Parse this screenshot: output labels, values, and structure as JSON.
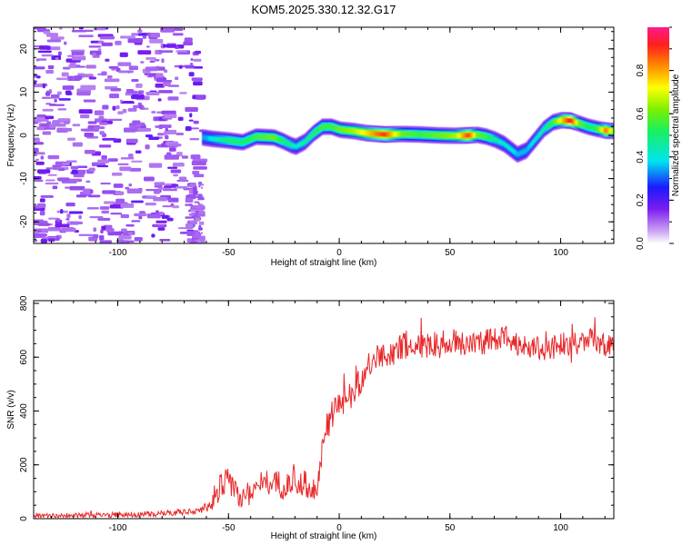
{
  "title": "KOM5.2025.330.12.32.G17",
  "chart_data": [
    {
      "type": "heatmap",
      "xlabel": "Height of straight line (km)",
      "ylabel": "Frequency (Hz)",
      "xlim": [
        -138,
        124
      ],
      "ylim": [
        -25,
        25
      ],
      "x_ticks": [
        -100,
        -50,
        0,
        50,
        100
      ],
      "y_ticks": [
        -20,
        -10,
        0,
        10,
        20
      ],
      "colorbar": {
        "label": "Normalized spectral amplitude",
        "range": [
          0,
          1
        ],
        "ticks": [
          0.0,
          0.2,
          0.4,
          0.6,
          0.8
        ]
      },
      "ridge_track": {
        "x": [
          -62,
          -58,
          -50,
          -44,
          -38,
          -30,
          -26,
          -22,
          -20,
          -16,
          -12,
          -8,
          -4,
          0,
          6,
          12,
          20,
          28,
          36,
          44,
          52,
          58,
          62,
          66,
          70,
          74,
          78,
          80,
          84,
          88,
          92,
          96,
          100,
          104,
          108,
          112,
          116,
          120,
          124
        ],
        "freq": [
          -0.5,
          -0.8,
          -1.2,
          -1.6,
          -0.3,
          -0.5,
          -1.3,
          -2.3,
          -2.6,
          -1.5,
          0.5,
          2.0,
          2.0,
          1.3,
          1.0,
          0.5,
          0.2,
          0.3,
          0.2,
          0.0,
          -0.1,
          0.0,
          0.1,
          -0.3,
          -1.0,
          -2.0,
          -3.6,
          -4.4,
          -3.5,
          -1.0,
          1.5,
          3.0,
          3.5,
          3.4,
          2.7,
          2.0,
          1.5,
          1.1,
          1.0
        ],
        "amplitude": [
          0.3,
          0.4,
          0.5,
          0.5,
          0.55,
          0.6,
          0.5,
          0.45,
          0.4,
          0.45,
          0.5,
          0.55,
          0.55,
          0.6,
          0.65,
          0.75,
          0.9,
          0.6,
          0.55,
          0.6,
          0.65,
          0.9,
          0.6,
          0.55,
          0.45,
          0.4,
          0.4,
          0.35,
          0.35,
          0.4,
          0.45,
          0.55,
          0.75,
          0.95,
          0.6,
          0.5,
          0.55,
          0.85,
          0.6
        ]
      }
    },
    {
      "type": "line",
      "xlabel": "Height of straight line (km)",
      "ylabel": "SNR (v/v)",
      "xlim": [
        -138,
        124
      ],
      "ylim": [
        0,
        810
      ],
      "x_ticks": [
        -100,
        -50,
        0,
        50,
        100
      ],
      "y_ticks": [
        0,
        200,
        400,
        600,
        800
      ],
      "line_color": "#e8282a",
      "trend": {
        "x": [
          -138,
          -120,
          -100,
          -80,
          -70,
          -62,
          -58,
          -54,
          -50,
          -45,
          -40,
          -35,
          -30,
          -25,
          -20,
          -15,
          -10,
          -8,
          -6,
          -3,
          0,
          3,
          6,
          10,
          14,
          18,
          22,
          26,
          30,
          35,
          40,
          50,
          60,
          70,
          76,
          80,
          85,
          90,
          100,
          110,
          115,
          120,
          124
        ],
        "y": [
          10,
          12,
          14,
          18,
          25,
          32,
          60,
          120,
          140,
          80,
          100,
          130,
          140,
          120,
          135,
          130,
          110,
          230,
          330,
          390,
          420,
          440,
          470,
          520,
          570,
          600,
          610,
          630,
          640,
          640,
          645,
          650,
          655,
          660,
          675,
          655,
          640,
          630,
          645,
          660,
          660,
          640,
          650
        ]
      },
      "noise_amplitude": {
        "x": [
          -138,
          -62,
          -58,
          -8,
          -7,
          124
        ],
        "amp": [
          8,
          12,
          50,
          50,
          55,
          45
        ]
      }
    }
  ]
}
